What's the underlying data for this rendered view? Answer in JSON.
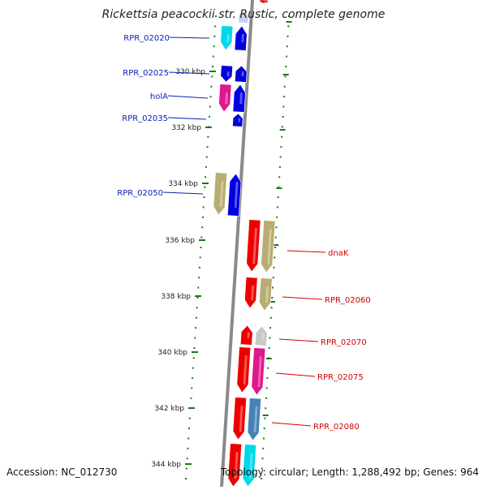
{
  "title": "Rickettsia peacockii str. Rustic, complete genome",
  "colors": {
    "backbone": "#8a8a8a",
    "ruler": "#1a7a1a",
    "left_label": "#0a1fb0",
    "right_label": "#d40000",
    "blue": "#0000e0",
    "red": "#ee0000",
    "cyan": "#00d8e8",
    "magenta": "#e0168c",
    "khaki": "#b8ad70",
    "grey": "#c8c8c8",
    "steelblue": "#4682b4",
    "lavender": "#c8ccf0"
  },
  "ruler_labels": [
    "330 kbp",
    "332 kbp",
    "334 kbp",
    "336 kbp",
    "338 kbp",
    "340 kbp",
    "342 kbp",
    "344 kbp"
  ],
  "left_gene_labels": [
    "RPR_02020",
    "RPR_02025",
    "holA",
    "RPR_02035",
    "RPR_02050"
  ],
  "right_gene_labels": [
    "dnaK",
    "RPR_02060",
    "RPR_02070",
    "RPR_02075",
    "RPR_02080"
  ],
  "footer": {
    "accession": "Accession: NC_012730",
    "topology": "Topology: circular; Length: 1,288,492 bp; Genes: 964"
  }
}
